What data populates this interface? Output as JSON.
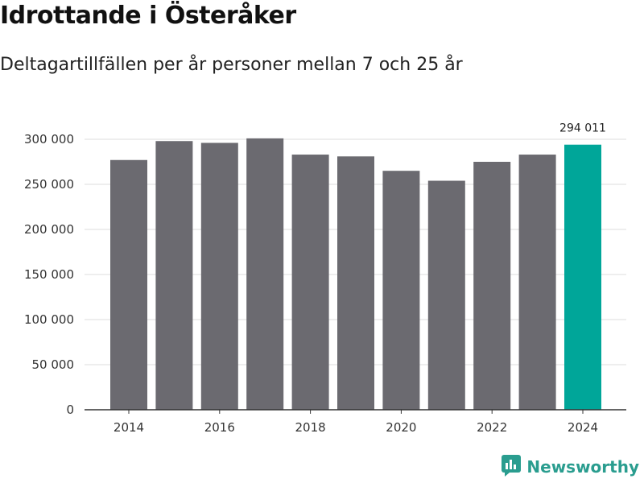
{
  "header": {
    "title": "Idrottande i Österåker",
    "subtitle": "Deltagartillfällen per år personer mellan 7 och 25 år"
  },
  "brand": {
    "name": "Newsworthy",
    "icon": "newsworthy-logo-icon"
  },
  "colors": {
    "bar": "#6b6a70",
    "highlight": "#00a699",
    "grid": "#dddddd",
    "axis": "#333333"
  },
  "chart_data": {
    "type": "bar",
    "title": "Idrottande i Österåker",
    "subtitle": "Deltagartillfällen per år personer mellan 7 och 25 år",
    "categories": [
      "2014",
      "2015",
      "2016",
      "2017",
      "2018",
      "2019",
      "2020",
      "2021",
      "2022",
      "2023",
      "2024"
    ],
    "values": [
      277000,
      298000,
      296000,
      301000,
      283000,
      281000,
      265000,
      254000,
      275000,
      283000,
      294011
    ],
    "highlight_index": 10,
    "data_labels": [
      {
        "index": 10,
        "text": "294 011"
      }
    ],
    "x_ticks": [
      "2014",
      "2016",
      "2018",
      "2020",
      "2022",
      "2024"
    ],
    "y_ticks": [
      0,
      50000,
      100000,
      150000,
      200000,
      250000,
      300000
    ],
    "y_tick_labels": [
      "0",
      "50 000",
      "100 000",
      "150 000",
      "200 000",
      "250 000",
      "300 000"
    ],
    "ylim": [
      0,
      300000
    ],
    "xlabel": "",
    "ylabel": "",
    "grid": true
  }
}
